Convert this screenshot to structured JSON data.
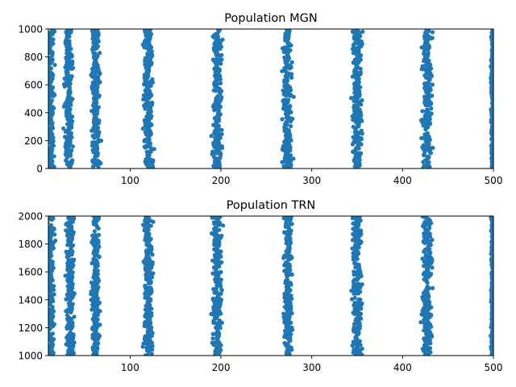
{
  "chart_data": [
    {
      "type": "scatter",
      "title": "Population MGN",
      "xlabel": "",
      "ylabel": "",
      "xlim": [
        10,
        500
      ],
      "ylim": [
        0,
        1000
      ],
      "xticks": [
        100,
        200,
        300,
        400,
        500
      ],
      "yticks": [
        0,
        200,
        400,
        600,
        800,
        1000
      ],
      "grid": false,
      "marker_color": "#1f77b4",
      "spike_bands": [
        {
          "x_center": 12,
          "x_width": 8,
          "y_range": [
            0,
            1000
          ]
        },
        {
          "x_center": 32,
          "x_width": 8,
          "y_range": [
            0,
            1000
          ]
        },
        {
          "x_center": 62,
          "x_width": 8,
          "y_range": [
            0,
            1000
          ]
        },
        {
          "x_center": 120,
          "x_width": 9,
          "y_range": [
            0,
            1000
          ]
        },
        {
          "x_center": 196,
          "x_width": 9,
          "y_range": [
            0,
            1000
          ]
        },
        {
          "x_center": 273,
          "x_width": 9,
          "y_range": [
            0,
            1000
          ]
        },
        {
          "x_center": 350,
          "x_width": 10,
          "y_range": [
            0,
            1000
          ]
        },
        {
          "x_center": 427,
          "x_width": 10,
          "y_range": [
            0,
            1000
          ]
        },
        {
          "x_center": 499,
          "x_width": 3,
          "y_range": [
            0,
            1000
          ]
        }
      ]
    },
    {
      "type": "scatter",
      "title": "Population TRN",
      "xlabel": "",
      "ylabel": "",
      "xlim": [
        10,
        500
      ],
      "ylim": [
        1000,
        2000
      ],
      "xticks": [
        100,
        200,
        300,
        400,
        500
      ],
      "yticks": [
        1000,
        1200,
        1400,
        1600,
        1800,
        2000
      ],
      "grid": false,
      "marker_color": "#1f77b4",
      "spike_bands": [
        {
          "x_center": 12,
          "x_width": 8,
          "y_range": [
            1000,
            2000
          ]
        },
        {
          "x_center": 34,
          "x_width": 8,
          "y_range": [
            1000,
            2000
          ]
        },
        {
          "x_center": 62,
          "x_width": 8,
          "y_range": [
            1000,
            2000
          ]
        },
        {
          "x_center": 120,
          "x_width": 9,
          "y_range": [
            1000,
            2000
          ]
        },
        {
          "x_center": 196,
          "x_width": 9,
          "y_range": [
            1000,
            2000
          ]
        },
        {
          "x_center": 274,
          "x_width": 9,
          "y_range": [
            1000,
            2000
          ]
        },
        {
          "x_center": 350,
          "x_width": 10,
          "y_range": [
            1000,
            2000
          ]
        },
        {
          "x_center": 427,
          "x_width": 10,
          "y_range": [
            1000,
            2000
          ]
        },
        {
          "x_center": 499,
          "x_width": 3,
          "y_range": [
            1000,
            2000
          ]
        }
      ]
    }
  ]
}
